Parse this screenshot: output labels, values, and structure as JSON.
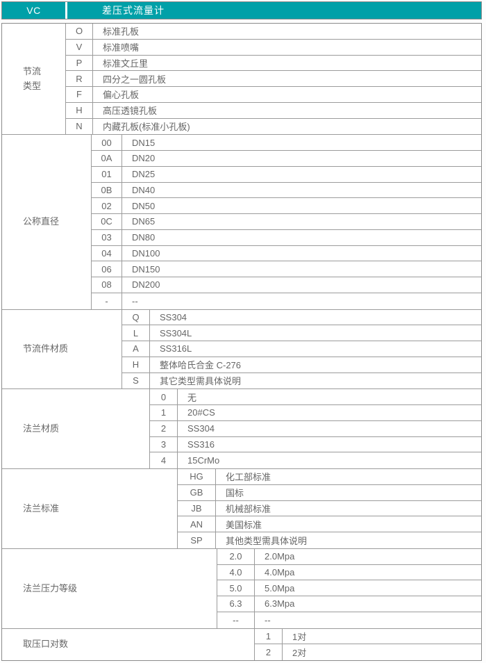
{
  "header": {
    "code": "VC",
    "title": "差压式流量计"
  },
  "colors": {
    "accent_teal": "#00a0a8",
    "border_gray": "#9b9b9b",
    "text_gray": "#666666",
    "header_text": "#ffffff"
  },
  "sections": [
    {
      "label": "节流\n类型",
      "rows": [
        {
          "code": "O",
          "desc": "标准孔板"
        },
        {
          "code": "V",
          "desc": "标准喷嘴"
        },
        {
          "code": "P",
          "desc": "标准文丘里"
        },
        {
          "code": "R",
          "desc": "四分之一圆孔板"
        },
        {
          "code": "F",
          "desc": "偏心孔板"
        },
        {
          "code": "H",
          "desc": "高压透镜孔板"
        },
        {
          "code": "N",
          "desc": "内藏孔板(标准小孔板)"
        }
      ]
    },
    {
      "label": "公称直径",
      "rows": [
        {
          "code": "00",
          "desc": "DN15"
        },
        {
          "code": "0A",
          "desc": "DN20"
        },
        {
          "code": "01",
          "desc": "DN25"
        },
        {
          "code": "0B",
          "desc": "DN40"
        },
        {
          "code": "02",
          "desc": "DN50"
        },
        {
          "code": "0C",
          "desc": "DN65"
        },
        {
          "code": "03",
          "desc": "DN80"
        },
        {
          "code": "04",
          "desc": "DN100"
        },
        {
          "code": "06",
          "desc": "DN150"
        },
        {
          "code": "08",
          "desc": "DN200"
        },
        {
          "code": "-",
          "desc": "--"
        }
      ]
    },
    {
      "label": "节流件材质",
      "rows": [
        {
          "code": "Q",
          "desc": "SS304"
        },
        {
          "code": "L",
          "desc": "SS304L"
        },
        {
          "code": "A",
          "desc": "SS316L"
        },
        {
          "code": "H",
          "desc": "整体哈氏合金 C-276"
        },
        {
          "code": "S",
          "desc": "其它类型需具体说明"
        }
      ]
    },
    {
      "label": "法兰材质",
      "rows": [
        {
          "code": "0",
          "desc": "无"
        },
        {
          "code": "1",
          "desc": "20#CS"
        },
        {
          "code": "2",
          "desc": "SS304"
        },
        {
          "code": "3",
          "desc": "SS316"
        },
        {
          "code": "4",
          "desc": "15CrMo"
        }
      ]
    },
    {
      "label": "法兰标准",
      "rows": [
        {
          "code": "HG",
          "desc": "化工部标准"
        },
        {
          "code": "GB",
          "desc": "国标"
        },
        {
          "code": "JB",
          "desc": "机械部标准"
        },
        {
          "code": "AN",
          "desc": "美国标准"
        },
        {
          "code": "SP",
          "desc": "其他类型需具体说明"
        }
      ]
    },
    {
      "label": "法兰压力等级",
      "rows": [
        {
          "code": "2.0",
          "desc": "2.0Mpa"
        },
        {
          "code": "4.0",
          "desc": "4.0Mpa"
        },
        {
          "code": "5.0",
          "desc": "5.0Mpa"
        },
        {
          "code": "6.3",
          "desc": "6.3Mpa"
        },
        {
          "code": "--",
          "desc": "--"
        }
      ]
    },
    {
      "label": "取压口对数",
      "rows": [
        {
          "code": "1",
          "desc": "1对"
        },
        {
          "code": "2",
          "desc": "2对"
        }
      ]
    }
  ]
}
